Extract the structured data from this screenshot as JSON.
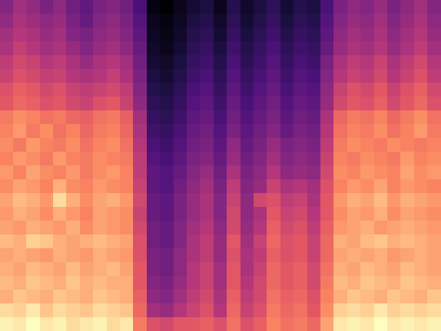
{
  "chart_data": {
    "type": "heatmap",
    "color": "magma",
    "tick_labels": false,
    "cells": [
      [
        42,
        48,
        45,
        40,
        44,
        38,
        35,
        40,
        42,
        38,
        30,
        12,
        10,
        14,
        18,
        20,
        14,
        22,
        16,
        20,
        24,
        18,
        22,
        20,
        30,
        40,
        44,
        42,
        46,
        40,
        44,
        48,
        42
      ],
      [
        45,
        50,
        47,
        44,
        46,
        40,
        36,
        42,
        44,
        40,
        32,
        14,
        12,
        15,
        20,
        22,
        16,
        24,
        18,
        22,
        26,
        20,
        24,
        22,
        32,
        42,
        46,
        44,
        48,
        42,
        46,
        50,
        44
      ],
      [
        48,
        52,
        50,
        46,
        48,
        42,
        40,
        44,
        46,
        42,
        34,
        15,
        13,
        16,
        22,
        24,
        18,
        26,
        20,
        24,
        28,
        22,
        26,
        24,
        34,
        44,
        48,
        46,
        50,
        44,
        48,
        52,
        46
      ],
      [
        50,
        55,
        52,
        48,
        50,
        46,
        42,
        46,
        48,
        44,
        36,
        16,
        14,
        18,
        24,
        26,
        20,
        28,
        22,
        26,
        30,
        24,
        28,
        26,
        36,
        46,
        50,
        48,
        52,
        46,
        50,
        54,
        48
      ],
      [
        54,
        58,
        56,
        52,
        54,
        50,
        46,
        50,
        52,
        48,
        38,
        18,
        16,
        20,
        26,
        28,
        22,
        30,
        24,
        28,
        32,
        26,
        30,
        28,
        40,
        50,
        54,
        52,
        56,
        50,
        54,
        58,
        52
      ],
      [
        56,
        60,
        58,
        55,
        56,
        52,
        50,
        52,
        55,
        50,
        40,
        20,
        18,
        22,
        28,
        30,
        24,
        32,
        26,
        30,
        34,
        28,
        32,
        30,
        42,
        52,
        56,
        54,
        58,
        52,
        56,
        60,
        54
      ],
      [
        60,
        64,
        62,
        58,
        60,
        56,
        54,
        56,
        58,
        54,
        42,
        22,
        20,
        24,
        30,
        32,
        26,
        34,
        28,
        32,
        36,
        30,
        34,
        32,
        44,
        56,
        60,
        58,
        62,
        56,
        60,
        64,
        58
      ],
      [
        62,
        66,
        64,
        60,
        62,
        58,
        56,
        60,
        62,
        56,
        44,
        24,
        22,
        26,
        32,
        34,
        28,
        36,
        30,
        34,
        38,
        32,
        36,
        34,
        46,
        58,
        62,
        60,
        64,
        58,
        62,
        66,
        60
      ],
      [
        70,
        74,
        72,
        68,
        70,
        66,
        64,
        68,
        70,
        64,
        48,
        26,
        24,
        28,
        34,
        36,
        30,
        38,
        32,
        36,
        40,
        34,
        38,
        36,
        50,
        66,
        70,
        68,
        72,
        66,
        70,
        74,
        68
      ],
      [
        72,
        76,
        70,
        74,
        68,
        72,
        66,
        70,
        72,
        66,
        50,
        28,
        26,
        30,
        36,
        38,
        32,
        40,
        34,
        38,
        42,
        36,
        40,
        38,
        52,
        68,
        72,
        70,
        74,
        68,
        72,
        76,
        70
      ],
      [
        74,
        70,
        76,
        72,
        70,
        74,
        68,
        72,
        74,
        68,
        52,
        30,
        28,
        32,
        38,
        40,
        34,
        44,
        36,
        40,
        46,
        40,
        42,
        40,
        54,
        70,
        74,
        72,
        70,
        74,
        72,
        70,
        72
      ],
      [
        72,
        76,
        74,
        70,
        76,
        72,
        70,
        74,
        72,
        70,
        54,
        32,
        30,
        34,
        40,
        42,
        36,
        46,
        38,
        42,
        48,
        42,
        44,
        42,
        56,
        72,
        70,
        74,
        72,
        70,
        76,
        72,
        74
      ],
      [
        76,
        72,
        78,
        74,
        72,
        76,
        70,
        74,
        76,
        72,
        54,
        34,
        32,
        36,
        42,
        46,
        38,
        50,
        40,
        44,
        52,
        44,
        46,
        44,
        58,
        74,
        72,
        76,
        74,
        72,
        78,
        74,
        76
      ],
      [
        74,
        78,
        76,
        72,
        80,
        74,
        72,
        76,
        74,
        72,
        56,
        34,
        32,
        38,
        44,
        48,
        40,
        54,
        42,
        46,
        56,
        50,
        52,
        48,
        60,
        72,
        76,
        74,
        78,
        72,
        76,
        74,
        72
      ],
      [
        78,
        82,
        80,
        76,
        88,
        80,
        74,
        78,
        80,
        76,
        58,
        36,
        34,
        40,
        46,
        50,
        42,
        56,
        44,
        58,
        60,
        54,
        56,
        50,
        62,
        76,
        80,
        78,
        82,
        76,
        80,
        78,
        76
      ],
      [
        76,
        80,
        78,
        74,
        80,
        76,
        72,
        78,
        76,
        74,
        56,
        36,
        34,
        40,
        46,
        50,
        42,
        58,
        44,
        50,
        62,
        56,
        58,
        52,
        62,
        74,
        78,
        76,
        80,
        74,
        78,
        76,
        74
      ],
      [
        78,
        76,
        80,
        78,
        76,
        80,
        74,
        78,
        76,
        74,
        58,
        38,
        36,
        42,
        48,
        52,
        44,
        58,
        46,
        52,
        64,
        58,
        60,
        54,
        64,
        76,
        78,
        80,
        76,
        78,
        80,
        78,
        76
      ],
      [
        82,
        80,
        86,
        84,
        80,
        78,
        80,
        82,
        80,
        78,
        60,
        38,
        36,
        42,
        50,
        54,
        46,
        62,
        48,
        56,
        66,
        60,
        62,
        56,
        66,
        80,
        78,
        82,
        84,
        80,
        82,
        80,
        78
      ],
      [
        78,
        80,
        78,
        76,
        80,
        78,
        76,
        80,
        78,
        76,
        60,
        40,
        38,
        44,
        50,
        54,
        46,
        60,
        50,
        54,
        64,
        60,
        62,
        56,
        66,
        78,
        80,
        78,
        80,
        76,
        78,
        80,
        78
      ],
      [
        80,
        78,
        82,
        80,
        78,
        82,
        78,
        80,
        82,
        78,
        62,
        40,
        38,
        44,
        52,
        56,
        48,
        62,
        50,
        56,
        66,
        62,
        64,
        58,
        68,
        80,
        78,
        82,
        80,
        78,
        82,
        80,
        78
      ],
      [
        82,
        80,
        84,
        82,
        80,
        84,
        80,
        82,
        80,
        80,
        62,
        42,
        40,
        46,
        52,
        56,
        48,
        62,
        52,
        58,
        66,
        62,
        64,
        58,
        70,
        82,
        80,
        84,
        82,
        80,
        84,
        82,
        80
      ],
      [
        80,
        84,
        82,
        80,
        84,
        82,
        80,
        84,
        82,
        80,
        64,
        44,
        42,
        48,
        54,
        58,
        50,
        64,
        54,
        58,
        68,
        64,
        66,
        60,
        72,
        80,
        84,
        82,
        80,
        84,
        82,
        80,
        84
      ],
      [
        88,
        86,
        90,
        84,
        88,
        86,
        84,
        88,
        86,
        84,
        66,
        48,
        46,
        52,
        56,
        60,
        52,
        66,
        56,
        60,
        70,
        66,
        68,
        62,
        74,
        86,
        88,
        86,
        90,
        86,
        88,
        86,
        88
      ],
      [
        92,
        90,
        94,
        90,
        92,
        88,
        90,
        92,
        88,
        90,
        70,
        60,
        58,
        62,
        62,
        64,
        60,
        68,
        60,
        64,
        72,
        68,
        70,
        66,
        78,
        90,
        92,
        90,
        94,
        90,
        92,
        90,
        92
      ]
    ]
  }
}
